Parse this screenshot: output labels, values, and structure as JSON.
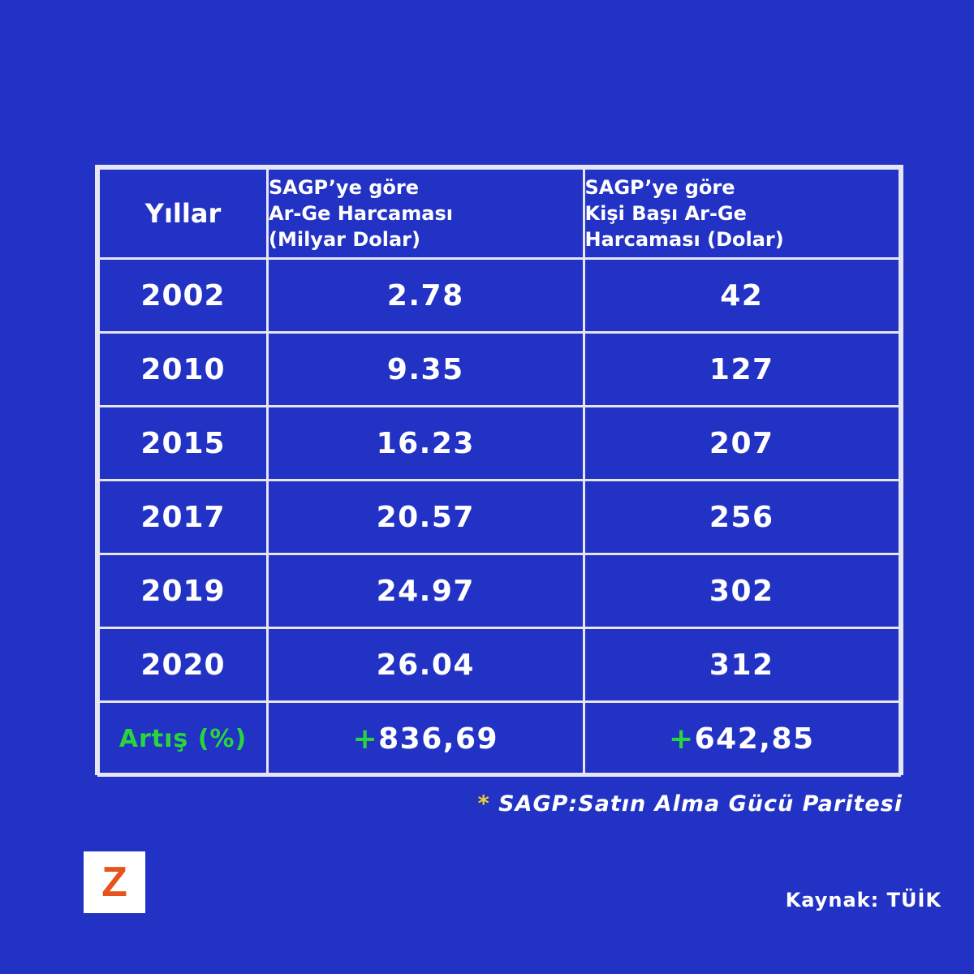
{
  "chart_data": {
    "type": "table",
    "columns": [
      "Yıllar",
      "SAGP’ye göre Ar-Ge Harcaması (Milyar Dolar)",
      "SAGP’ye göre Kişi Başı Ar-Ge Harcaması (Dolar)"
    ],
    "headers": {
      "years": "Yıllar",
      "col1": [
        "SAGP’ye göre",
        "Ar-Ge Harcaması",
        "(Milyar Dolar)"
      ],
      "col2": [
        "SAGP’ye göre",
        "Kişi Başı Ar-Ge",
        "Harcaması (Dolar)"
      ]
    },
    "rows": [
      {
        "year": "2002",
        "rd_spending": "2.78",
        "per_capita": "42"
      },
      {
        "year": "2010",
        "rd_spending": "9.35",
        "per_capita": "127"
      },
      {
        "year": "2015",
        "rd_spending": "16.23",
        "per_capita": "207"
      },
      {
        "year": "2017",
        "rd_spending": "20.57",
        "per_capita": "256"
      },
      {
        "year": "2019",
        "rd_spending": "24.97",
        "per_capita": "302"
      },
      {
        "year": "2020",
        "rd_spending": "26.04",
        "per_capita": "312"
      }
    ],
    "increase_row": {
      "label": "Artış (%)",
      "rd_sign": "+",
      "rd_value": "836,69",
      "pc_sign": "+",
      "pc_value": "642,85"
    }
  },
  "footnote": {
    "star": "*",
    "text": "SAGP:Satın Alma Gücü Paritesi"
  },
  "logo": {
    "letter": "Z"
  },
  "source": {
    "label": "Kaynak:",
    "value": "TÜİK"
  },
  "colors": {
    "background": "#2232c4",
    "text": "#ffffff",
    "grid": "#e6e6f2",
    "positive": "#27d63a",
    "footnote_star": "#f2d22a",
    "logo_letter": "#e8531c",
    "logo_bg": "#ffffff"
  }
}
